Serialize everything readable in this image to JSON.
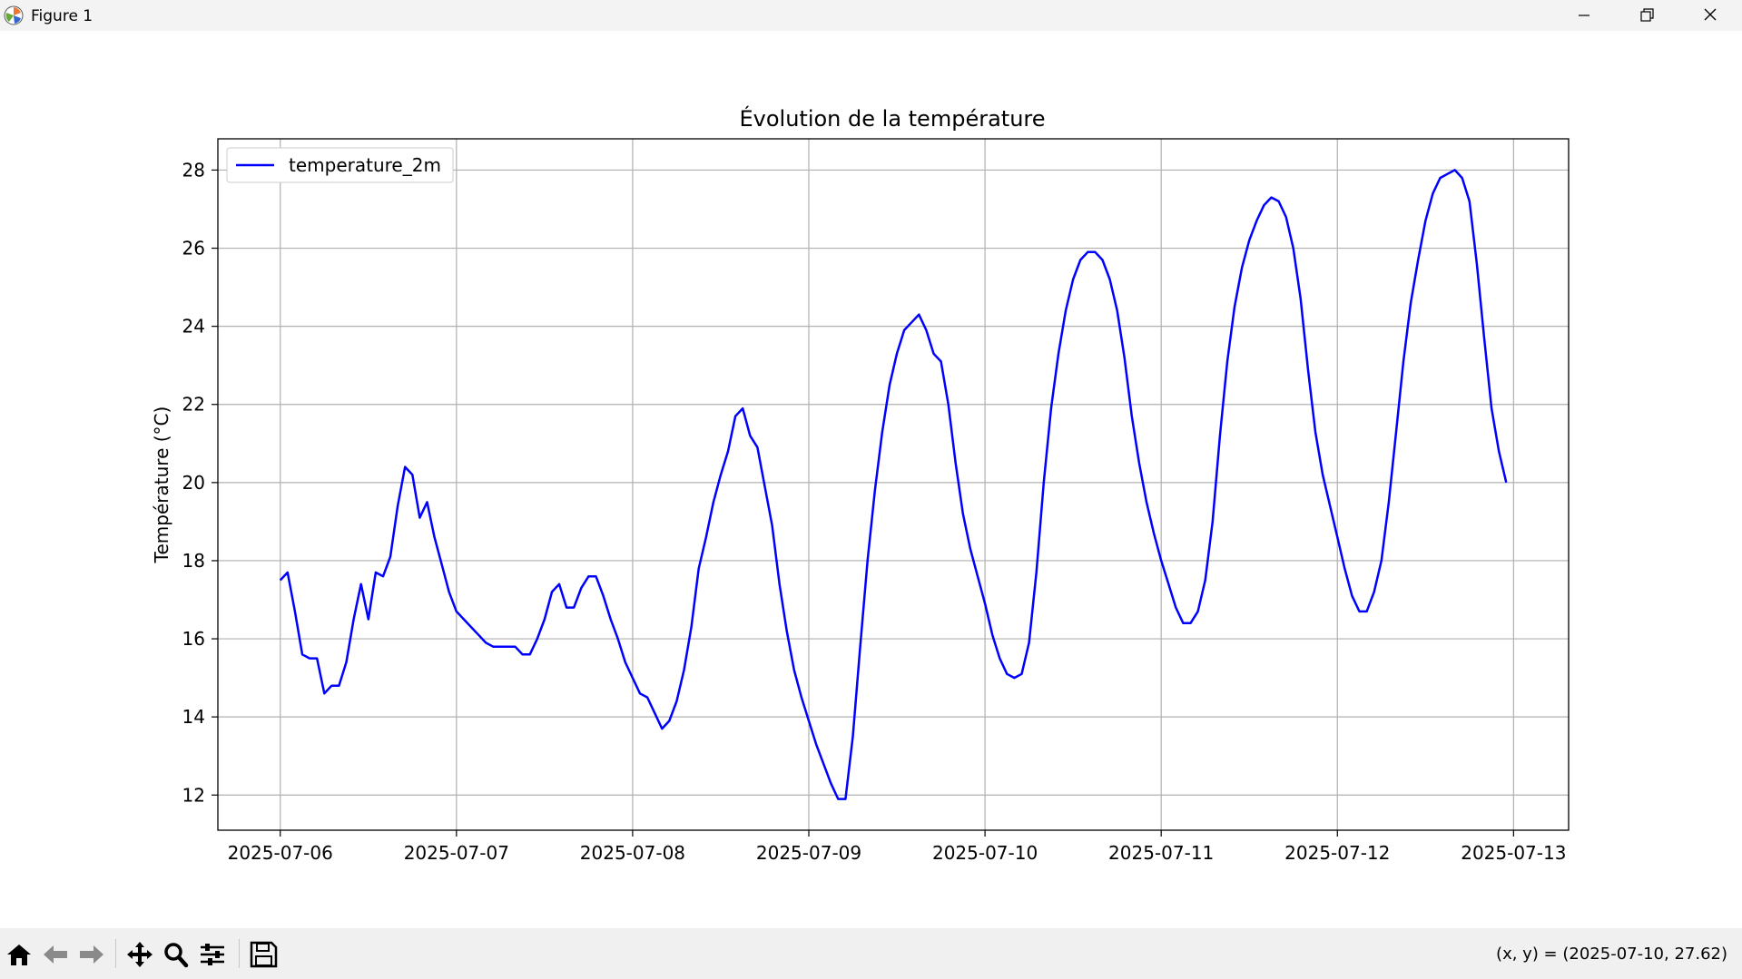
{
  "window": {
    "title": "Figure 1",
    "buttons": [
      "minimize",
      "restore",
      "close"
    ]
  },
  "toolbar": {
    "tools": [
      "home-icon",
      "back-icon",
      "forward-icon",
      "pan-icon",
      "zoom-icon",
      "configure-subplots-icon",
      "save-icon"
    ],
    "coords_text": "(x, y) = (2025-07-10, 27.62)"
  },
  "chart_data": {
    "type": "line",
    "title": "Évolution de la température",
    "xlabel": "",
    "ylabel": "Température (°C)",
    "x_ticks": [
      "2025-07-06",
      "2025-07-07",
      "2025-07-08",
      "2025-07-09",
      "2025-07-10",
      "2025-07-11",
      "2025-07-12",
      "2025-07-13"
    ],
    "y_ticks": [
      "12",
      "14",
      "16",
      "18",
      "20",
      "22",
      "24",
      "26",
      "28"
    ],
    "ylim": [
      11.1,
      28.8
    ],
    "xlim": [
      "2025-07-05 15:30",
      "2025-07-13 07:30"
    ],
    "grid": true,
    "legend_position": "top-left",
    "series": [
      {
        "name": "temperature_2m",
        "color": "#0000ff",
        "x_start": "2025-07-06 00:00",
        "x_step": "1h",
        "values": [
          17.5,
          17.7,
          16.7,
          15.6,
          15.5,
          15.5,
          14.6,
          14.8,
          14.8,
          15.4,
          16.5,
          17.4,
          16.5,
          17.7,
          17.6,
          18.1,
          19.4,
          20.4,
          20.2,
          19.1,
          19.5,
          18.6,
          17.9,
          17.2,
          16.7,
          16.5,
          16.3,
          16.1,
          15.9,
          15.8,
          15.8,
          15.8,
          15.8,
          15.6,
          15.6,
          16.0,
          16.5,
          17.2,
          17.4,
          16.8,
          16.8,
          17.3,
          17.6,
          17.6,
          17.1,
          16.5,
          16.0,
          15.4,
          15.0,
          14.6,
          14.5,
          14.1,
          13.7,
          13.9,
          14.4,
          15.2,
          16.3,
          17.8,
          18.6,
          19.5,
          20.2,
          20.8,
          21.7,
          21.9,
          21.2,
          20.9,
          19.9,
          18.9,
          17.4,
          16.2,
          15.2,
          14.5,
          13.9,
          13.3,
          12.8,
          12.3,
          11.9,
          11.9,
          13.5,
          15.8,
          18.0,
          19.8,
          21.3,
          22.5,
          23.3,
          23.9,
          24.1,
          24.3,
          23.9,
          23.3,
          23.1,
          22.0,
          20.5,
          19.2,
          18.3,
          17.6,
          16.9,
          16.1,
          15.5,
          15.1,
          15.0,
          15.1,
          15.9,
          17.7,
          20.0,
          21.9,
          23.3,
          24.4,
          25.2,
          25.7,
          25.9,
          25.9,
          25.7,
          25.2,
          24.4,
          23.2,
          21.7,
          20.5,
          19.5,
          18.7,
          18.0,
          17.4,
          16.8,
          16.4,
          16.4,
          16.7,
          17.5,
          19.0,
          21.2,
          23.1,
          24.5,
          25.5,
          26.2,
          26.7,
          27.1,
          27.3,
          27.2,
          26.8,
          26.0,
          24.7,
          22.9,
          21.3,
          20.2,
          19.4,
          18.6,
          17.8,
          17.1,
          16.7,
          16.7,
          17.2,
          18.0,
          19.5,
          21.3,
          23.1,
          24.6,
          25.7,
          26.7,
          27.4,
          27.8,
          27.9,
          28.0,
          27.8,
          27.2,
          25.6,
          23.7,
          21.9,
          20.8,
          20.0
        ]
      }
    ]
  }
}
